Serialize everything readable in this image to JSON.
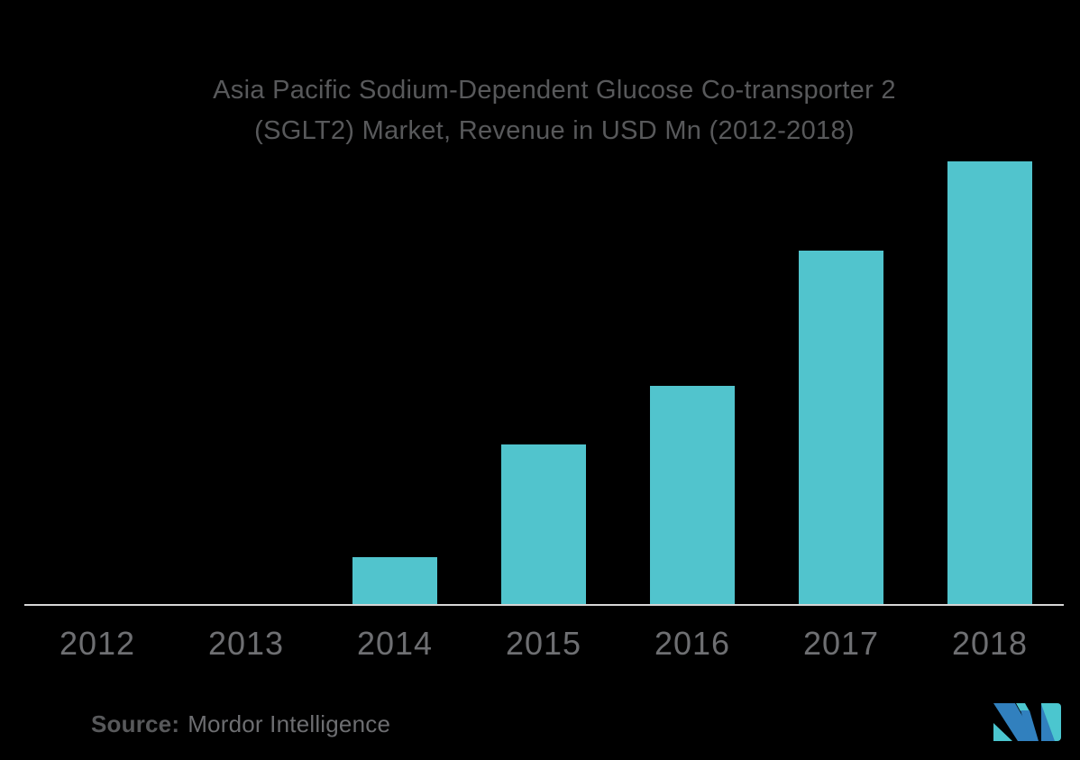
{
  "chart": {
    "title_line1": "Asia Pacific Sodium-Dependent Glucose Co-transporter 2",
    "title_line2": "(SGLT2) Market, Revenue in USD Mn (2012-2018)"
  },
  "footer": {
    "source_label": "Source:",
    "source_value": "Mordor Intelligence"
  },
  "colors": {
    "background": "#000000",
    "bar": "#51C4CD",
    "title_text": "#58595B",
    "axis_label_text": "#6E6F72",
    "source_text": "#6D6E71",
    "axis_line": "#D6D6D6",
    "logo_blue": "#3180BE",
    "logo_teal": "#4BC6CF"
  },
  "chart_data": {
    "type": "bar",
    "title": "Asia Pacific Sodium-Dependent Glucose Co-transporter 2 (SGLT2) Market, Revenue in USD Mn (2012-2018)",
    "categories": [
      "2012",
      "2013",
      "2014",
      "2015",
      "2016",
      "2017",
      "2018"
    ],
    "values": [
      0,
      0,
      52,
      177,
      242,
      392,
      491
    ],
    "xlabel": "",
    "ylabel": "Revenue in USD Mn",
    "ylim": [
      0,
      520
    ],
    "grid": false,
    "legend": false,
    "y_axis_shown": false,
    "value_note": "No y-axis or data labels in source image; values are relative estimates read from bar heights (2012 and 2013 have no visible bars).",
    "bar_color": "#51C4CD"
  }
}
